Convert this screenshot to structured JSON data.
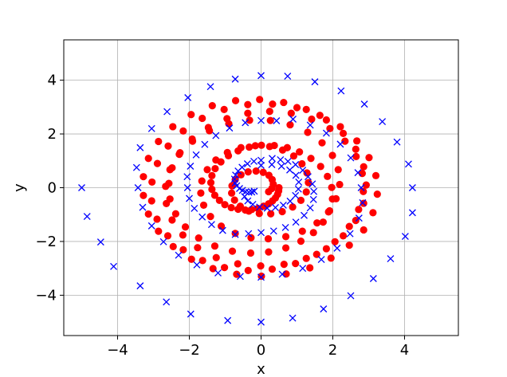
{
  "chart_data": {
    "type": "scatter",
    "title": "",
    "xlabel": "x",
    "ylabel": "y",
    "xlim": [
      -5.5,
      5.5
    ],
    "ylim": [
      -5.5,
      5.5
    ],
    "xticks": [
      -4,
      -2,
      0,
      2,
      4
    ],
    "yticks": [
      -4,
      -2,
      0,
      2,
      4
    ],
    "xtick_labels": [
      "−4",
      "−2",
      "0",
      "2",
      "4"
    ],
    "ytick_labels": [
      "−4",
      "−2",
      "0",
      "2",
      "4"
    ],
    "grid": true,
    "series": [
      {
        "marker": "circle",
        "color": "#ff0000",
        "points": [
          [
            0.5,
            0.0
          ],
          [
            0.49,
            -0.12
          ],
          [
            0.46,
            -0.25
          ],
          [
            0.4,
            -0.38
          ],
          [
            0.32,
            -0.49
          ],
          [
            0.21,
            -0.6
          ],
          [
            0.07,
            -0.69
          ],
          [
            -0.09,
            -0.77
          ],
          [
            -0.26,
            -0.81
          ],
          [
            -0.44,
            -0.83
          ],
          [
            -0.64,
            -0.8
          ],
          [
            -0.83,
            -0.74
          ],
          [
            -1.01,
            -0.63
          ],
          [
            -1.16,
            -0.47
          ],
          [
            -1.29,
            -0.28
          ],
          [
            -1.37,
            -0.06
          ],
          [
            -1.4,
            0.19
          ],
          [
            -1.37,
            0.45
          ],
          [
            -1.28,
            0.71
          ],
          [
            -1.12,
            0.96
          ],
          [
            -0.91,
            1.19
          ],
          [
            -0.64,
            1.37
          ],
          [
            -0.33,
            1.51
          ],
          [
            0.01,
            1.58
          ],
          [
            0.37,
            1.57
          ],
          [
            0.73,
            1.49
          ],
          [
            1.07,
            1.33
          ],
          [
            1.39,
            1.09
          ],
          [
            1.66,
            0.79
          ],
          [
            1.85,
            0.42
          ],
          [
            1.97,
            0.01
          ],
          [
            1.99,
            -0.42
          ],
          [
            1.91,
            -0.86
          ],
          [
            1.73,
            -1.28
          ],
          [
            1.46,
            -1.67
          ],
          [
            1.11,
            -1.99
          ],
          [
            0.69,
            -2.24
          ],
          [
            0.21,
            -2.39
          ],
          [
            -0.29,
            -2.43
          ],
          [
            -0.8,
            -2.36
          ],
          [
            -1.29,
            -2.17
          ],
          [
            -1.74,
            -1.87
          ],
          [
            -2.11,
            -1.46
          ],
          [
            -2.38,
            -0.97
          ],
          [
            -2.54,
            -0.42
          ],
          [
            -2.57,
            0.16
          ],
          [
            -2.48,
            0.74
          ],
          [
            -2.26,
            1.3
          ],
          [
            -1.92,
            1.81
          ],
          [
            -1.47,
            2.24
          ],
          [
            -0.95,
            2.57
          ],
          [
            -0.37,
            2.77
          ],
          [
            0.24,
            2.84
          ],
          [
            0.84,
            2.77
          ],
          [
            1.41,
            2.55
          ],
          [
            1.92,
            2.2
          ],
          [
            2.34,
            1.73
          ],
          [
            2.65,
            1.16
          ],
          [
            2.82,
            0.53
          ],
          [
            2.85,
            -0.14
          ],
          [
            2.72,
            -0.81
          ],
          [
            2.46,
            -1.44
          ],
          [
            2.06,
            -2.01
          ],
          [
            1.55,
            -2.48
          ],
          [
            0.96,
            -2.82
          ],
          [
            0.31,
            -3.03
          ],
          [
            -0.36,
            -3.08
          ],
          [
            -1.02,
            -2.97
          ],
          [
            -1.63,
            -2.71
          ],
          [
            -2.17,
            -2.31
          ],
          [
            -2.6,
            -1.79
          ],
          [
            -2.9,
            -1.17
          ],
          [
            -3.05,
            -0.49
          ],
          [
            -3.04,
            0.21
          ],
          [
            -2.89,
            0.9
          ],
          [
            -2.59,
            1.55
          ],
          [
            -2.17,
            2.11
          ],
          [
            -1.64,
            2.58
          ],
          [
            -1.03,
            2.91
          ],
          [
            -0.37,
            3.09
          ],
          [
            0.32,
            3.11
          ],
          [
            1.0,
            2.98
          ],
          [
            1.64,
            2.69
          ],
          [
            2.21,
            2.27
          ],
          [
            2.67,
            1.74
          ],
          [
            3.01,
            1.12
          ],
          [
            3.2,
            0.45
          ],
          [
            3.24,
            -0.24
          ],
          [
            3.12,
            -0.93
          ],
          [
            2.86,
            -1.57
          ],
          [
            2.46,
            -2.14
          ],
          [
            1.95,
            -2.62
          ],
          [
            1.36,
            -2.98
          ],
          [
            0.7,
            -3.21
          ],
          [
            0.01,
            -3.29
          ],
          [
            -0.68,
            -3.22
          ],
          [
            -1.34,
            -3.01
          ],
          [
            -1.94,
            -2.66
          ],
          [
            -2.45,
            -2.19
          ],
          [
            -2.86,
            -1.62
          ],
          [
            -3.14,
            -0.98
          ],
          [
            -3.28,
            -0.29
          ],
          [
            -3.28,
            0.41
          ],
          [
            -3.14,
            1.09
          ],
          [
            -2.86,
            1.72
          ],
          [
            -2.46,
            2.27
          ],
          [
            -1.95,
            2.72
          ],
          [
            -1.36,
            3.05
          ],
          [
            -0.71,
            3.24
          ],
          [
            -0.04,
            3.28
          ],
          [
            0.63,
            3.17
          ],
          [
            1.26,
            2.91
          ],
          [
            1.82,
            2.52
          ],
          [
            2.29,
            2.02
          ],
          [
            2.64,
            1.43
          ],
          [
            2.86,
            0.78
          ],
          [
            2.93,
            0.1
          ],
          [
            2.86,
            -0.58
          ],
          [
            2.64,
            -1.22
          ],
          [
            2.29,
            -1.79
          ],
          [
            1.82,
            -2.27
          ],
          [
            1.26,
            -2.63
          ],
          [
            0.64,
            -2.85
          ],
          [
            -0.01,
            -2.91
          ],
          [
            -0.65,
            -2.83
          ],
          [
            -1.25,
            -2.6
          ],
          [
            -1.77,
            -2.23
          ],
          [
            -2.18,
            -1.76
          ],
          [
            -2.48,
            -1.2
          ],
          [
            -2.64,
            -0.59
          ],
          [
            -2.66,
            0.05
          ],
          [
            -2.54,
            0.67
          ],
          [
            -2.28,
            1.24
          ],
          [
            -1.91,
            1.73
          ],
          [
            -1.44,
            2.12
          ],
          [
            -0.9,
            2.38
          ],
          [
            -0.32,
            2.51
          ],
          [
            0.26,
            2.5
          ],
          [
            0.81,
            2.34
          ],
          [
            1.3,
            2.06
          ],
          [
            1.7,
            1.67
          ],
          [
            1.99,
            1.2
          ],
          [
            2.15,
            0.67
          ],
          [
            2.19,
            0.12
          ],
          [
            2.09,
            -0.41
          ],
          [
            1.88,
            -0.9
          ],
          [
            1.56,
            -1.31
          ],
          [
            1.15,
            -1.62
          ],
          [
            0.69,
            -1.82
          ],
          [
            0.2,
            -1.9
          ],
          [
            -0.28,
            -1.86
          ],
          [
            -0.72,
            -1.7
          ],
          [
            -1.11,
            -1.43
          ],
          [
            -1.41,
            -1.07
          ],
          [
            -1.6,
            -0.65
          ],
          [
            -1.68,
            -0.2
          ],
          [
            -1.65,
            0.25
          ],
          [
            -1.5,
            0.67
          ],
          [
            -1.26,
            1.03
          ],
          [
            -0.94,
            1.31
          ],
          [
            -0.56,
            1.49
          ],
          [
            -0.16,
            1.56
          ],
          [
            0.24,
            1.53
          ],
          [
            0.6,
            1.4
          ],
          [
            0.91,
            1.18
          ],
          [
            1.14,
            0.89
          ],
          [
            1.28,
            0.55
          ],
          [
            1.32,
            0.19
          ],
          [
            1.26,
            -0.16
          ],
          [
            1.11,
            -0.47
          ],
          [
            0.88,
            -0.72
          ],
          [
            0.59,
            -0.89
          ],
          [
            0.27,
            -0.97
          ],
          [
            -0.05,
            -0.96
          ],
          [
            -0.34,
            -0.87
          ],
          [
            -0.58,
            -0.69
          ],
          [
            -0.74,
            -0.46
          ],
          [
            -0.82,
            -0.2
          ],
          [
            -0.81,
            0.07
          ],
          [
            -0.72,
            0.3
          ],
          [
            -0.56,
            0.48
          ],
          [
            -0.36,
            0.59
          ],
          [
            -0.14,
            0.62
          ],
          [
            0.06,
            0.57
          ],
          [
            0.22,
            0.46
          ],
          [
            0.31,
            0.3
          ],
          [
            0.34,
            0.13
          ],
          [
            0.3,
            -0.03
          ],
          [
            0.21,
            -0.15
          ]
        ]
      },
      {
        "marker": "x",
        "color": "#0000ff",
        "points": [
          [
            -5.0,
            0.0
          ],
          [
            -4.85,
            -1.07
          ],
          [
            -4.47,
            -2.02
          ],
          [
            -4.11,
            -2.93
          ],
          [
            -3.37,
            -3.65
          ],
          [
            -2.64,
            -4.25
          ],
          [
            -1.96,
            -4.7
          ],
          [
            -0.93,
            -4.94
          ],
          [
            0.0,
            -5.0
          ],
          [
            0.88,
            -4.85
          ],
          [
            1.74,
            -4.51
          ],
          [
            2.5,
            -4.02
          ],
          [
            3.13,
            -3.38
          ],
          [
            3.61,
            -2.64
          ],
          [
            4.02,
            -1.81
          ],
          [
            4.22,
            -0.93
          ],
          [
            4.22,
            0.0
          ],
          [
            4.11,
            0.88
          ],
          [
            3.79,
            1.7
          ],
          [
            3.38,
            2.46
          ],
          [
            2.88,
            3.11
          ],
          [
            2.23,
            3.6
          ],
          [
            1.5,
            3.94
          ],
          [
            0.74,
            4.15
          ],
          [
            0.0,
            4.17
          ],
          [
            -0.72,
            4.04
          ],
          [
            -1.41,
            3.76
          ],
          [
            -2.04,
            3.35
          ],
          [
            -2.62,
            2.83
          ],
          [
            -3.05,
            2.2
          ],
          [
            -3.37,
            1.49
          ],
          [
            -3.47,
            0.75
          ],
          [
            -3.43,
            0.0
          ],
          [
            -3.3,
            -0.73
          ],
          [
            -3.05,
            -1.42
          ],
          [
            -2.72,
            -2.01
          ],
          [
            -2.3,
            -2.51
          ],
          [
            -1.79,
            -2.87
          ],
          [
            -1.2,
            -3.17
          ],
          [
            -0.58,
            -3.3
          ],
          [
            0.0,
            -3.33
          ],
          [
            0.59,
            -3.22
          ],
          [
            1.16,
            -3.0
          ],
          [
            1.68,
            -2.67
          ],
          [
            2.12,
            -2.25
          ],
          [
            2.48,
            -1.71
          ],
          [
            2.73,
            -1.13
          ],
          [
            2.83,
            -0.56
          ],
          [
            2.79,
            0.0
          ],
          [
            2.7,
            0.56
          ],
          [
            2.5,
            1.11
          ],
          [
            2.21,
            1.62
          ],
          [
            1.82,
            2.03
          ],
          [
            1.37,
            2.33
          ],
          [
            0.89,
            2.55
          ],
          [
            0.43,
            2.49
          ],
          [
            0.0,
            2.5
          ],
          [
            -0.44,
            2.42
          ],
          [
            -0.88,
            2.22
          ],
          [
            -1.26,
            1.94
          ],
          [
            -1.57,
            1.61
          ],
          [
            -1.81,
            1.22
          ],
          [
            -1.97,
            0.8
          ],
          [
            -2.06,
            0.41
          ],
          [
            -2.05,
            0.0
          ],
          [
            -2.0,
            -0.4
          ],
          [
            -1.86,
            -0.77
          ],
          [
            -1.64,
            -1.09
          ],
          [
            -1.38,
            -1.37
          ],
          [
            -1.07,
            -1.59
          ],
          [
            -0.72,
            -1.74
          ],
          [
            -0.35,
            -1.71
          ],
          [
            0.0,
            -1.67
          ],
          [
            0.35,
            -1.61
          ],
          [
            0.68,
            -1.48
          ],
          [
            0.97,
            -1.28
          ],
          [
            1.2,
            -1.03
          ],
          [
            1.37,
            -0.75
          ],
          [
            1.46,
            -0.44
          ],
          [
            1.47,
            -0.14
          ],
          [
            1.43,
            0.14
          ],
          [
            1.31,
            0.41
          ],
          [
            1.16,
            0.65
          ],
          [
            0.96,
            0.86
          ],
          [
            0.75,
            0.98
          ],
          [
            0.54,
            1.04
          ],
          [
            0.31,
            1.09
          ],
          [
            0.0,
            1.02
          ],
          [
            -0.2,
            0.98
          ],
          [
            -0.38,
            0.89
          ],
          [
            -0.53,
            0.76
          ],
          [
            -0.64,
            0.62
          ],
          [
            -0.71,
            0.47
          ],
          [
            -0.74,
            0.32
          ],
          [
            -0.72,
            0.18
          ],
          [
            -0.68,
            0.07
          ],
          [
            -0.6,
            -0.03
          ],
          [
            -0.52,
            -0.1
          ],
          [
            -0.43,
            -0.15
          ],
          [
            -0.34,
            -0.17
          ],
          [
            -0.26,
            -0.16
          ],
          [
            -0.19,
            -0.13
          ],
          [
            0.0,
            0.83
          ],
          [
            0.3,
            0.86
          ],
          [
            0.57,
            0.8
          ],
          [
            0.8,
            0.66
          ],
          [
            0.97,
            0.46
          ],
          [
            1.05,
            0.21
          ],
          [
            1.04,
            -0.05
          ],
          [
            0.96,
            -0.29
          ],
          [
            0.81,
            -0.5
          ],
          [
            0.62,
            -0.65
          ],
          [
            0.4,
            -0.74
          ],
          [
            0.17,
            -0.76
          ],
          [
            -0.04,
            -0.72
          ],
          [
            -0.23,
            -0.62
          ],
          [
            -0.37,
            -0.49
          ],
          [
            -0.46,
            -0.33
          ]
        ]
      }
    ]
  }
}
